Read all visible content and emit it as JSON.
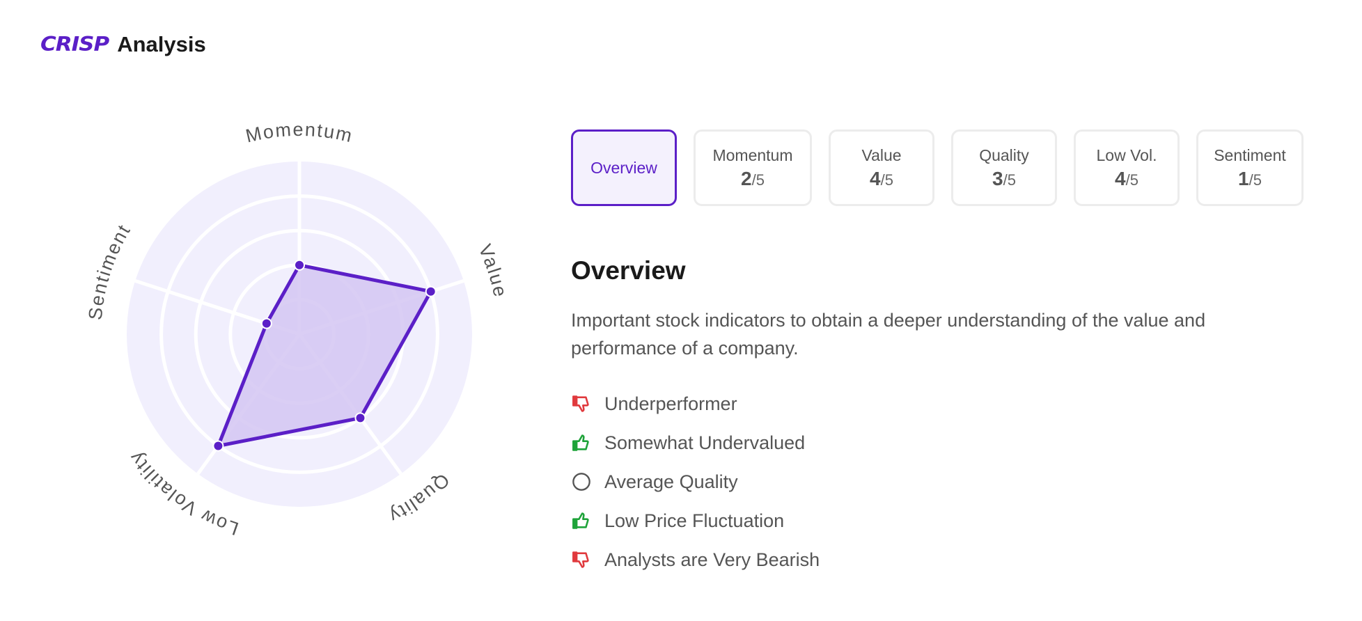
{
  "header": {
    "logo": "CRISP",
    "title": "Analysis",
    "brand_color": "#5b1fc7"
  },
  "chart_data": {
    "type": "radar",
    "axes": [
      "Momentum",
      "Value",
      "Quality",
      "Low Volatility",
      "Sentiment"
    ],
    "values": [
      2,
      4,
      3,
      4,
      1
    ],
    "max": 5,
    "rings": 5,
    "fill_color": "#d4c6f2",
    "stroke_color": "#5b1fc7",
    "background_color": "#f1effd"
  },
  "tabs": [
    {
      "label": "Overview",
      "active": true
    },
    {
      "label": "Momentum",
      "score": "2",
      "max": "/5",
      "active": false
    },
    {
      "label": "Value",
      "score": "4",
      "max": "/5",
      "active": false
    },
    {
      "label": "Quality",
      "score": "3",
      "max": "/5",
      "active": false
    },
    {
      "label": "Low Vol.",
      "score": "4",
      "max": "/5",
      "active": false
    },
    {
      "label": "Sentiment",
      "score": "1",
      "max": "/5",
      "active": false
    }
  ],
  "overview": {
    "title": "Overview",
    "description": "Important stock indicators to obtain a deeper understanding of the value and performance of a company.",
    "factors": [
      {
        "text": "Underperformer",
        "icon": "thumbs-down-icon",
        "color": "#e03a3e"
      },
      {
        "text": "Somewhat Undervalued",
        "icon": "thumbs-up-icon",
        "color": "#1fa33a"
      },
      {
        "text": "Average Quality",
        "icon": "circle-icon",
        "color": "#555555"
      },
      {
        "text": "Low Price Fluctuation",
        "icon": "thumbs-up-icon",
        "color": "#1fa33a"
      },
      {
        "text": "Analysts are Very Bearish",
        "icon": "thumbs-down-icon",
        "color": "#e03a3e"
      }
    ]
  }
}
